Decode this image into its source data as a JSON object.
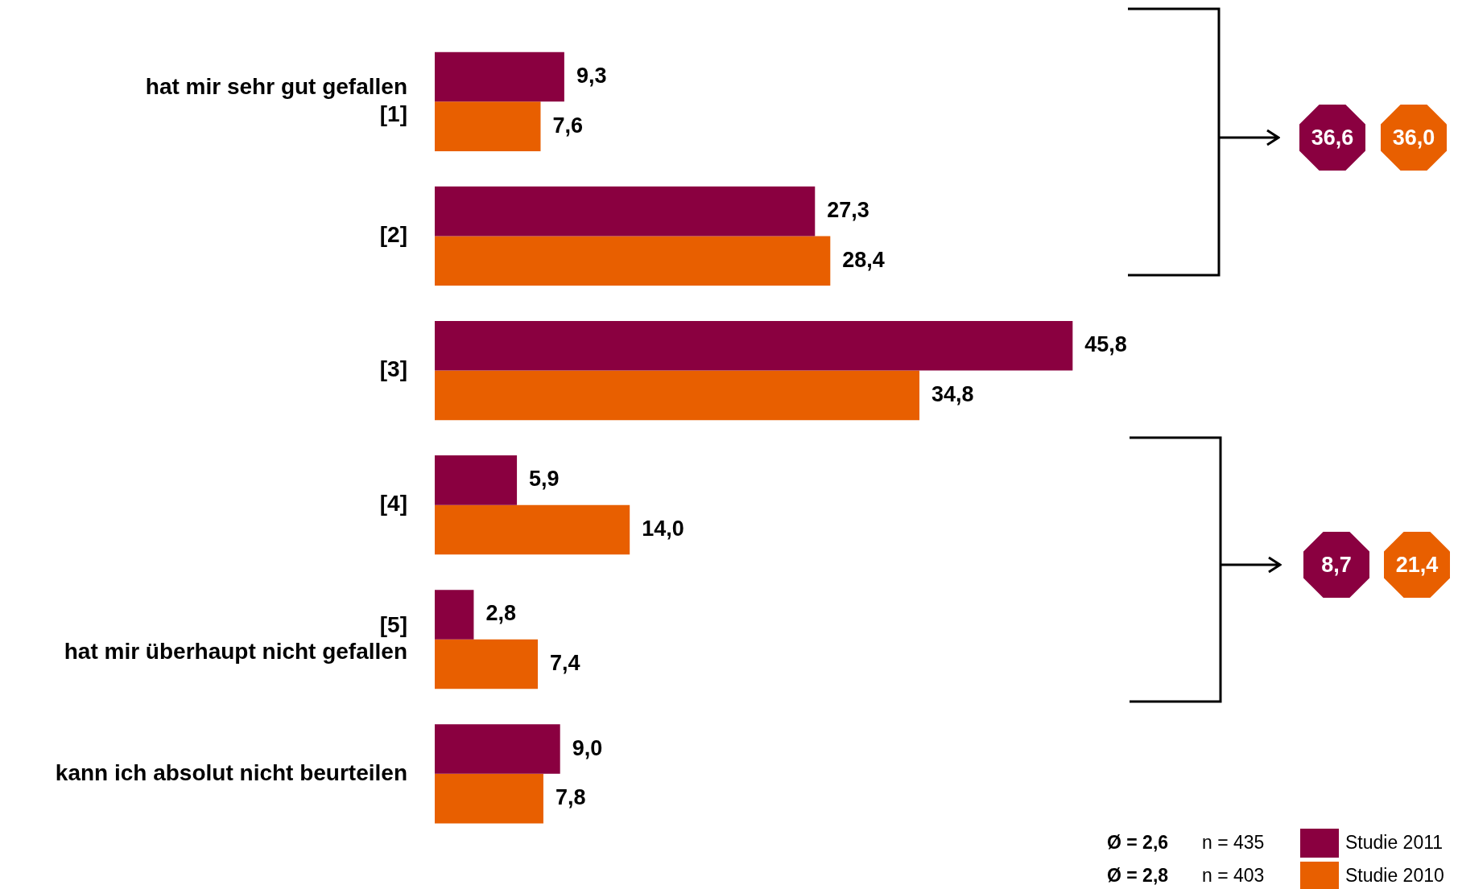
{
  "chart_data": {
    "type": "bar",
    "orientation": "horizontal",
    "categories": [
      "hat mir sehr gut gefallen\n[1]",
      "[2]",
      "[3]",
      "[4]",
      "[5]\nhat mir überhaupt nicht gefallen",
      "kann ich absolut nicht beurteilen"
    ],
    "series": [
      {
        "name": "Studie 2011",
        "color": "#8a0040",
        "values": [
          9.3,
          27.3,
          45.8,
          5.9,
          2.8,
          9.0
        ],
        "value_labels": [
          "9,3",
          "27,3",
          "45,8",
          "5,9",
          "2,8",
          "9,0"
        ]
      },
      {
        "name": "Studie 2010",
        "color": "#e85f00",
        "values": [
          7.6,
          28.4,
          34.8,
          14.0,
          7.4,
          7.8
        ],
        "value_labels": [
          "7,6",
          "28,4",
          "34,8",
          "14,0",
          "7,4",
          "7,8"
        ]
      }
    ],
    "tick_labels": "y",
    "legend": "bottom right",
    "annotations": [
      "36,6",
      "36,0",
      "8,7",
      "21,4",
      "Ø = 2,6",
      "n = 435",
      "Ø = 2,8",
      "n = 403"
    ]
  }
}
